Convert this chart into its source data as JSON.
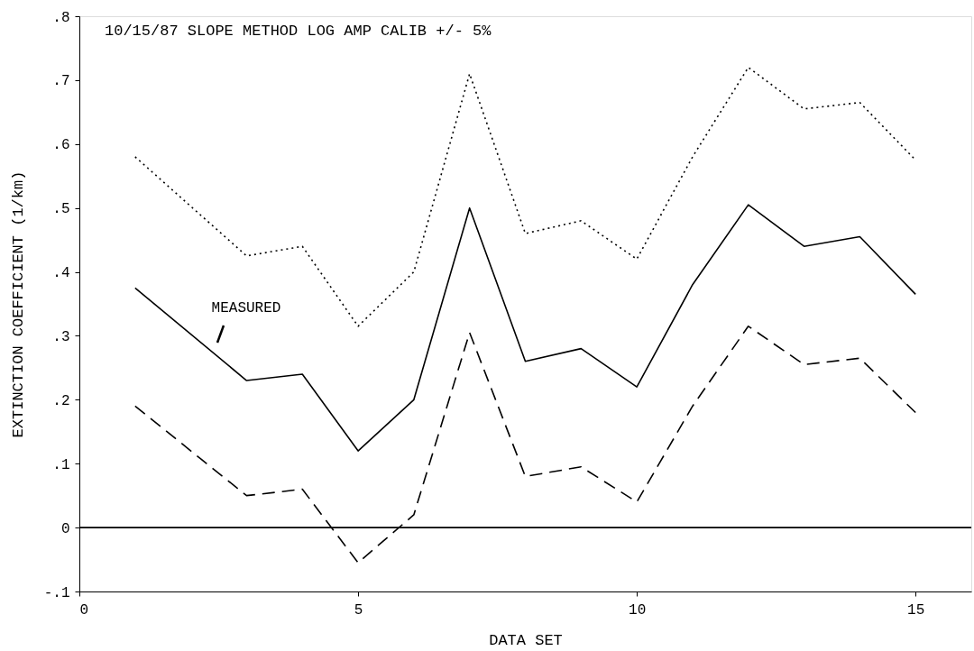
{
  "chart_data": {
    "type": "line",
    "title": "10/15/87 SLOPE METHOD  LOG AMP CALIB +/- 5%",
    "xlabel": "DATA SET",
    "ylabel": "EXTINCTION COEFFICIENT (1/km)",
    "x": [
      1,
      3,
      4,
      5,
      6,
      7,
      8,
      9,
      10,
      11,
      12,
      13,
      14,
      15
    ],
    "series": [
      {
        "color": "#000000",
        "line_style": "dotted",
        "values": [
          0.58,
          0.425,
          0.44,
          0.315,
          0.4,
          0.71,
          0.46,
          0.48,
          0.42,
          0.58,
          0.72,
          0.655,
          0.665,
          0.575
        ]
      },
      {
        "color": "#000000",
        "line_style": "solid",
        "values": [
          0.375,
          0.23,
          0.24,
          0.12,
          0.2,
          0.5,
          0.26,
          0.28,
          0.22,
          0.38,
          0.505,
          0.44,
          0.455,
          0.365
        ]
      },
      {
        "color": "#000000",
        "line_style": "dashed",
        "values": [
          0.19,
          0.05,
          0.06,
          -0.055,
          0.02,
          0.305,
          0.08,
          0.095,
          0.04,
          0.19,
          0.315,
          0.255,
          0.265,
          0.18
        ]
      }
    ],
    "xlim": [
      0,
      16
    ],
    "ylim": [
      -0.1,
      0.8
    ],
    "xticks": [
      0,
      5,
      10,
      15
    ],
    "yticks": [
      {
        "value": -0.1,
        "label": "-.1"
      },
      0,
      {
        "value": 0.1,
        "label": ".1"
      },
      {
        "value": 0.2,
        "label": ".2"
      },
      {
        "value": 0.3,
        "label": ".3"
      },
      {
        "value": 0.4,
        "label": ".4"
      },
      {
        "value": 0.5,
        "label": ".5"
      },
      {
        "value": 0.6,
        "label": ".6"
      },
      {
        "value": 0.7,
        "label": ".7"
      },
      {
        "value": 0.8,
        "label": ".8"
      }
    ],
    "ref_lines": [
      {
        "axis": "y",
        "value": 0,
        "color": "#000000",
        "line_style": "solid"
      }
    ],
    "annotations": [
      "MEASURED"
    ],
    "grid": false,
    "marker": "none"
  }
}
